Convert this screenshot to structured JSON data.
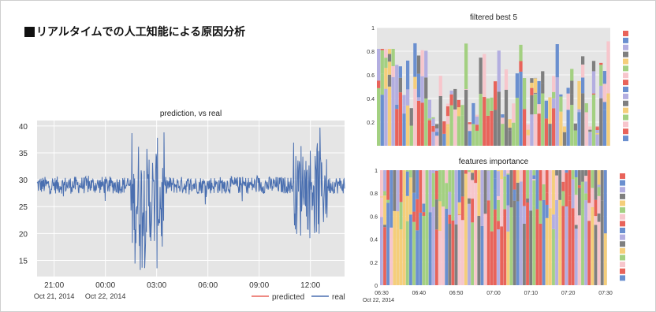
{
  "slide": {
    "heading": "リアルタイムでの人工知能による原因分析"
  },
  "palette": {
    "plot_bg": "#e5e5e5",
    "series": [
      "#e8635a",
      "#6a8fcf",
      "#b3aee0",
      "#7f7f7f",
      "#f5ce7a",
      "#a3d081",
      "#f7c6cc"
    ]
  },
  "chart_data": [
    {
      "type": "line",
      "title": "prediction, vs real",
      "xlabel": "",
      "ylabel": "",
      "ylim": [
        12,
        41
      ],
      "yticks": [
        15,
        20,
        25,
        30,
        35,
        40
      ],
      "x_start": "2014-10-21 20:00",
      "x_end": "2014-10-22 14:00",
      "x_tick_labels": [
        "21:00",
        "00:00",
        "03:00",
        "06:00",
        "09:00",
        "12:00"
      ],
      "x_tick_sublabels": [
        "Oct 21, 2014",
        "Oct 22, 2014"
      ],
      "baseline": 29,
      "volatile_periods": [
        {
          "start": "2014-10-22 01:30",
          "end": "2014-10-22 03:30",
          "min": 12,
          "max": 40
        },
        {
          "start": "2014-10-22 11:00",
          "end": "2014-10-22 13:00",
          "min": 18,
          "max": 40
        }
      ],
      "series": [
        {
          "name": "predicted",
          "color": "#e8635a"
        },
        {
          "name": "real",
          "color": "#4a6fb0"
        }
      ],
      "legend": "bottom-right",
      "grid": true
    },
    {
      "type": "bar",
      "stacked": true,
      "title": "filtered best 5",
      "ylim": [
        0,
        1
      ],
      "yticks": [
        0.2,
        0.4,
        0.6,
        0.8,
        1
      ],
      "ytick_labels": [
        "0.2",
        "0.4",
        "0.6",
        "0.8",
        "1"
      ],
      "x_tick_labels": [],
      "bars": 64,
      "legend_swatches": 16,
      "grid": true
    },
    {
      "type": "bar",
      "stacked": true,
      "title": "features importance",
      "ylim": [
        0,
        1
      ],
      "yticks": [
        0,
        0.2,
        0.4,
        0.6,
        0.8,
        1
      ],
      "ytick_labels": [
        "0",
        "0.2",
        "0.4",
        "0.6",
        "0.8",
        "1"
      ],
      "x_tick_labels": [
        "06:30",
        "06:40",
        "06:50",
        "07:00",
        "07:10",
        "07:20",
        "07:30"
      ],
      "x_sublabel": "Oct 22, 2014",
      "bars": 70,
      "legend_swatches": 16,
      "grid": true
    }
  ]
}
